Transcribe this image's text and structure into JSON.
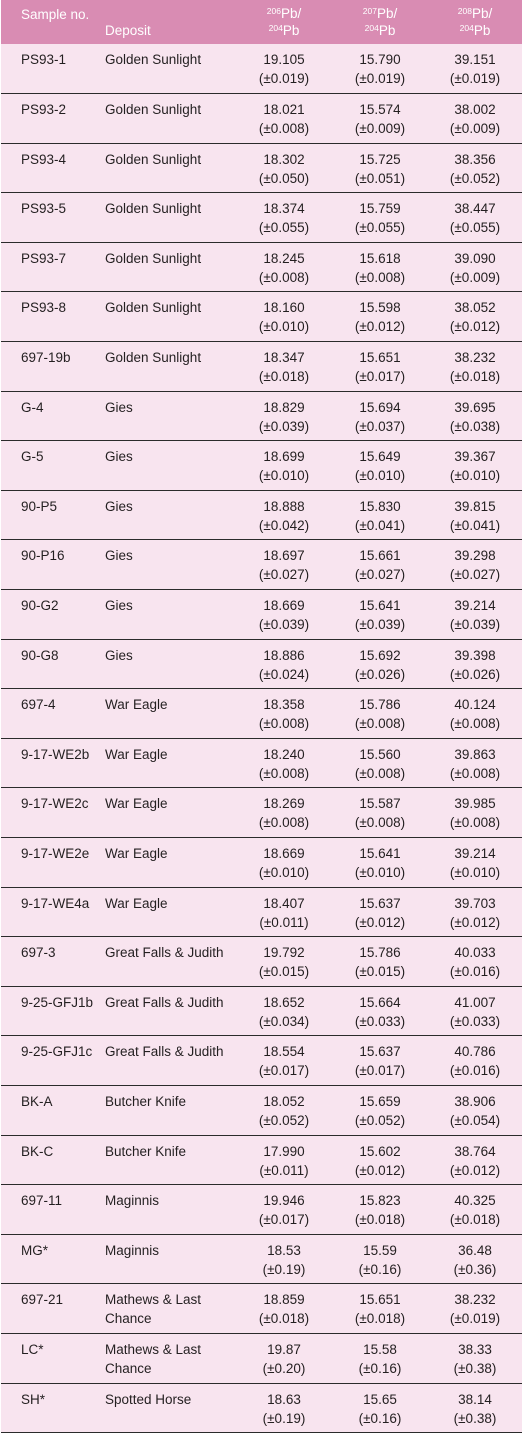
{
  "header": {
    "sample": "Sample no.",
    "deposit": "Deposit",
    "col3": {
      "sup1": "206",
      "el1": "Pb/",
      "sup2": "204",
      "el2": "Pb"
    },
    "col4": {
      "sup1": "207",
      "el1": "Pb/",
      "sup2": "204",
      "el2": "Pb"
    },
    "col5": {
      "sup1": "208",
      "el1": "Pb/",
      "sup2": "204",
      "el2": "Pb"
    }
  },
  "rows": [
    {
      "sample": "PS93-1",
      "deposit": "Golden Sunlight",
      "pb206": "19.105",
      "pb206_err": "(±0.019)",
      "pb207": "15.790",
      "pb207_err": "(±0.019)",
      "pb208": "39.151",
      "pb208_err": "(±0.019)"
    },
    {
      "sample": "PS93-2",
      "deposit": "Golden Sunlight",
      "pb206": "18.021",
      "pb206_err": "(±0.008)",
      "pb207": "15.574",
      "pb207_err": "(±0.009)",
      "pb208": "38.002",
      "pb208_err": "(±0.009)"
    },
    {
      "sample": "PS93-4",
      "deposit": "Golden Sunlight",
      "pb206": "18.302",
      "pb206_err": "(±0.050)",
      "pb207": "15.725",
      "pb207_err": "(±0.051)",
      "pb208": "38.356",
      "pb208_err": "(±0.052)"
    },
    {
      "sample": "PS93-5",
      "deposit": "Golden Sunlight",
      "pb206": "18.374",
      "pb206_err": "(±0.055)",
      "pb207": "15.759",
      "pb207_err": "(±0.055)",
      "pb208": "38.447",
      "pb208_err": "(±0.055)"
    },
    {
      "sample": "PS93-7",
      "deposit": "Golden Sunlight",
      "pb206": "18.245",
      "pb206_err": "(±0.008)",
      "pb207": "15.618",
      "pb207_err": "(±0.008)",
      "pb208": "39.090",
      "pb208_err": "(±0.009)"
    },
    {
      "sample": "PS93-8",
      "deposit": "Golden Sunlight",
      "pb206": "18.160",
      "pb206_err": "(±0.010)",
      "pb207": "15.598",
      "pb207_err": "(±0.012)",
      "pb208": "38.052",
      "pb208_err": "(±0.012)"
    },
    {
      "sample": "697-19b",
      "deposit": "Golden Sunlight",
      "pb206": "18.347",
      "pb206_err": "(±0.018)",
      "pb207": "15.651",
      "pb207_err": "(±0.017)",
      "pb208": "38.232",
      "pb208_err": "(±0.018)"
    },
    {
      "sample": "G-4",
      "deposit": "Gies",
      "pb206": "18.829",
      "pb206_err": "(±0.039)",
      "pb207": "15.694",
      "pb207_err": "(±0.037)",
      "pb208": "39.695",
      "pb208_err": "(±0.038)"
    },
    {
      "sample": "G-5",
      "deposit": "Gies",
      "pb206": "18.699",
      "pb206_err": "(±0.010)",
      "pb207": "15.649",
      "pb207_err": "(±0.010)",
      "pb208": "39.367",
      "pb208_err": "(±0.010)"
    },
    {
      "sample": "90-P5",
      "deposit": "Gies",
      "pb206": "18.888",
      "pb206_err": "(±0.042)",
      "pb207": "15.830",
      "pb207_err": "(±0.041)",
      "pb208": "39.815",
      "pb208_err": "(±0.041)"
    },
    {
      "sample": "90-P16",
      "deposit": "Gies",
      "pb206": "18.697",
      "pb206_err": "(±0.027)",
      "pb207": "15.661",
      "pb207_err": "(±0.027)",
      "pb208": "39.298",
      "pb208_err": "(±0.027)"
    },
    {
      "sample": "90-G2",
      "deposit": "Gies",
      "pb206": "18.669",
      "pb206_err": "(±0.039)",
      "pb207": "15.641",
      "pb207_err": "(±0.039)",
      "pb208": "39.214",
      "pb208_err": "(±0.039)"
    },
    {
      "sample": "90-G8",
      "deposit": "Gies",
      "pb206": "18.886",
      "pb206_err": "(±0.024)",
      "pb207": "15.692",
      "pb207_err": "(±0.026)",
      "pb208": "39.398",
      "pb208_err": "(±0.026)"
    },
    {
      "sample": "697-4",
      "deposit": "War Eagle",
      "pb206": "18.358",
      "pb206_err": "(±0.008)",
      "pb207": "15.786",
      "pb207_err": "(±0.008)",
      "pb208": "40.124",
      "pb208_err": "(±0.008)"
    },
    {
      "sample": "9-17-WE2b",
      "deposit": "War Eagle",
      "pb206": "18.240",
      "pb206_err": "(±0.008)",
      "pb207": "15.560",
      "pb207_err": "(±0.008)",
      "pb208": "39.863",
      "pb208_err": "(±0.008)"
    },
    {
      "sample": "9-17-WE2c",
      "deposit": "War Eagle",
      "pb206": "18.269",
      "pb206_err": "(±0.008)",
      "pb207": "15.587",
      "pb207_err": "(±0.008)",
      "pb208": "39.985",
      "pb208_err": "(±0.008)"
    },
    {
      "sample": "9-17-WE2e",
      "deposit": "War Eagle",
      "pb206": "18.669",
      "pb206_err": "(±0.010)",
      "pb207": "15.641",
      "pb207_err": "(±0.010)",
      "pb208": "39.214",
      "pb208_err": "(±0.010)"
    },
    {
      "sample": "9-17-WE4a",
      "deposit": "War Eagle",
      "pb206": "18.407",
      "pb206_err": "(±0.011)",
      "pb207": "15.637",
      "pb207_err": "(±0.012)",
      "pb208": "39.703",
      "pb208_err": "(±0.012)"
    },
    {
      "sample": "697-3",
      "deposit": "Great Falls & Judith",
      "pb206": "19.792",
      "pb206_err": "(±0.015)",
      "pb207": "15.786",
      "pb207_err": "(±0.015)",
      "pb208": "40.033",
      "pb208_err": "(±0.016)"
    },
    {
      "sample": "9-25-GFJ1b",
      "deposit": "Great Falls & Judith",
      "pb206": "18.652",
      "pb206_err": "(±0.034)",
      "pb207": "15.664",
      "pb207_err": "(±0.033)",
      "pb208": "41.007",
      "pb208_err": "(±0.033)"
    },
    {
      "sample": "9-25-GFJ1c",
      "deposit": "Great Falls & Judith",
      "pb206": "18.554",
      "pb206_err": "(±0.017)",
      "pb207": "15.637",
      "pb207_err": "(±0.017)",
      "pb208": "40.786",
      "pb208_err": "(±0.016)"
    },
    {
      "sample": "BK-A",
      "deposit": "Butcher Knife",
      "pb206": "18.052",
      "pb206_err": "(±0.052)",
      "pb207": "15.659",
      "pb207_err": "(±0.052)",
      "pb208": "38.906",
      "pb208_err": "(±0.054)"
    },
    {
      "sample": "BK-C",
      "deposit": "Butcher Knife",
      "pb206": "17.990",
      "pb206_err": "(±0.011)",
      "pb207": "15.602",
      "pb207_err": "(±0.012)",
      "pb208": "38.764",
      "pb208_err": "(±0.012)"
    },
    {
      "sample": "697-11",
      "deposit": "Maginnis",
      "pb206": "19.946",
      "pb206_err": "(±0.017)",
      "pb207": "15.823",
      "pb207_err": "(±0.018)",
      "pb208": "40.325",
      "pb208_err": "(±0.018)"
    },
    {
      "sample": "MG*",
      "deposit": "Maginnis",
      "pb206": "18.53",
      "pb206_err": "(±0.19)",
      "pb207": "15.59",
      "pb207_err": "(±0.16)",
      "pb208": "36.48",
      "pb208_err": "(±0.36)"
    },
    {
      "sample": "697-21",
      "deposit": "Mathews & Last Chance",
      "pb206": "18.859",
      "pb206_err": "(±0.018)",
      "pb207": "15.651",
      "pb207_err": "(±0.018)",
      "pb208": "38.232",
      "pb208_err": "(±0.019)"
    },
    {
      "sample": "LC*",
      "deposit": "Mathews & Last Chance",
      "pb206": "19.87",
      "pb206_err": "(±0.20)",
      "pb207": "15.58",
      "pb207_err": "(±0.16)",
      "pb208": "38.33",
      "pb208_err": "(±0.38)"
    },
    {
      "sample": "SH*",
      "deposit": "Spotted Horse",
      "pb206": "18.63",
      "pb206_err": "(±0.19)",
      "pb207": "15.65",
      "pb207_err": "(±0.16)",
      "pb208": "38.14",
      "pb208_err": "(±0.38)"
    }
  ]
}
